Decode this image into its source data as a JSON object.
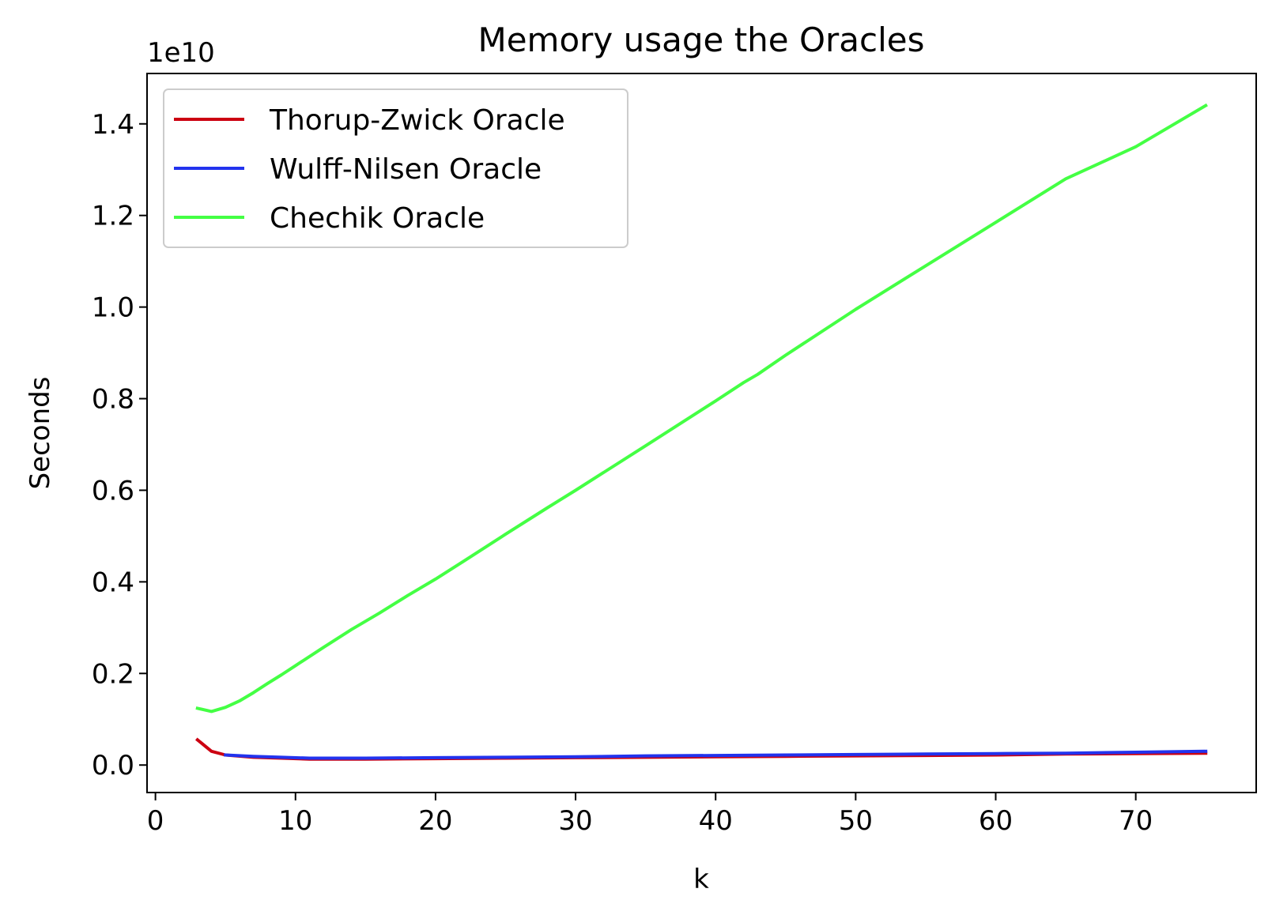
{
  "chart_data": {
    "type": "line",
    "title": "Memory usage the Oracles",
    "xlabel": "k",
    "ylabel": "Seconds",
    "y_offset_label": "1e10",
    "xlim": [
      -0.6,
      78.6
    ],
    "ylim": [
      -0.06,
      1.51
    ],
    "xticks": [
      0,
      10,
      20,
      30,
      40,
      50,
      60,
      70
    ],
    "xtick_labels": [
      "0",
      "10",
      "20",
      "30",
      "40",
      "50",
      "60",
      "70"
    ],
    "yticks": [
      0.0,
      0.2,
      0.4,
      0.6,
      0.8,
      1.0,
      1.2,
      1.4
    ],
    "ytick_labels": [
      "0.0",
      "0.2",
      "0.4",
      "0.6",
      "0.8",
      "1.0",
      "1.2",
      "1.4"
    ],
    "grid": false,
    "legend_position": "top-left",
    "series": [
      {
        "name": "Thorup-Zwick Oracle",
        "color": "#cc0011",
        "x": [
          3,
          4,
          5,
          7,
          9,
          11,
          15,
          20,
          25,
          30,
          35,
          40,
          45,
          50,
          55,
          60,
          65,
          70,
          75
        ],
        "y": [
          0.055,
          0.03,
          0.022,
          0.017,
          0.015,
          0.013,
          0.013,
          0.014,
          0.015,
          0.016,
          0.017,
          0.018,
          0.019,
          0.02,
          0.021,
          0.022,
          0.024,
          0.025,
          0.026
        ]
      },
      {
        "name": "Wulff-Nilsen Oracle",
        "color": "#2233ee",
        "x": [
          5,
          7,
          9,
          11,
          15,
          20,
          25,
          30,
          35,
          40,
          45,
          50,
          55,
          60,
          65,
          70,
          75
        ],
        "y": [
          0.022,
          0.019,
          0.017,
          0.015,
          0.015,
          0.016,
          0.017,
          0.018,
          0.02,
          0.021,
          0.022,
          0.023,
          0.024,
          0.025,
          0.026,
          0.028,
          0.03
        ]
      },
      {
        "name": "Chechik Oracle",
        "color": "#44ff44",
        "x": [
          3,
          4,
          5,
          6,
          7,
          8,
          9,
          10,
          12,
          14,
          16,
          18,
          20,
          22,
          25,
          28,
          30,
          35,
          40,
          42,
          43,
          45,
          50,
          55,
          60,
          65,
          70,
          75
        ],
        "y": [
          0.124,
          0.117,
          0.126,
          0.14,
          0.158,
          0.178,
          0.197,
          0.217,
          0.257,
          0.296,
          0.332,
          0.37,
          0.406,
          0.445,
          0.504,
          0.562,
          0.6,
          0.697,
          0.795,
          0.835,
          0.853,
          0.895,
          0.995,
          1.09,
          1.185,
          1.28,
          1.35,
          1.44
        ]
      }
    ]
  }
}
